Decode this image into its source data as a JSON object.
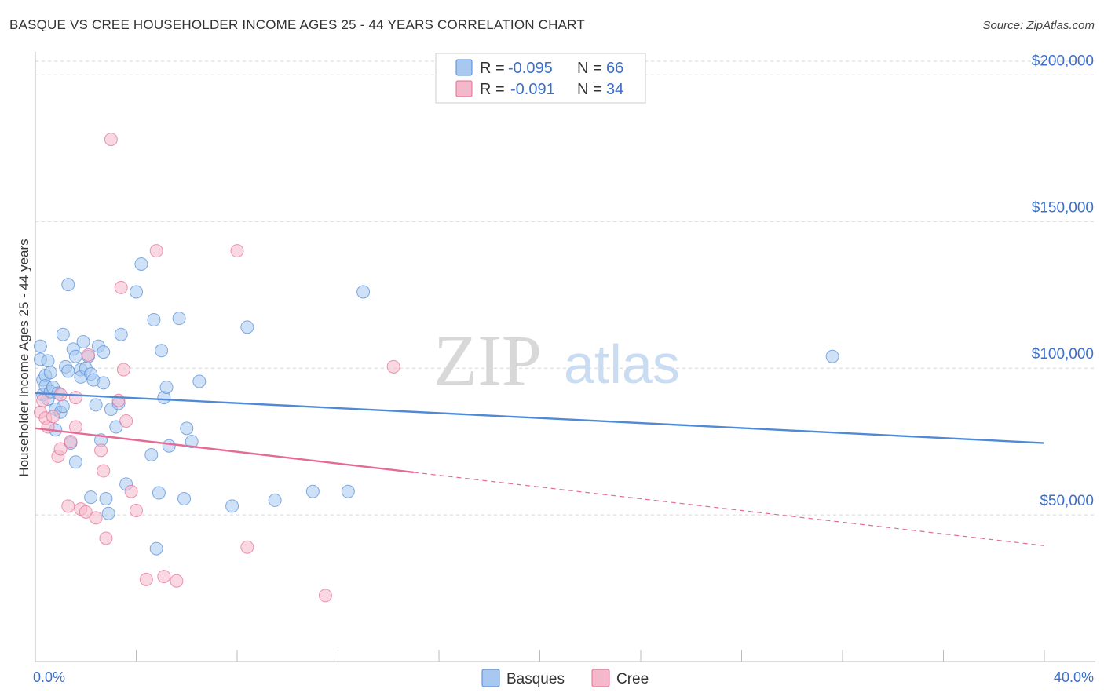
{
  "title": "BASQUE VS CREE HOUSEHOLDER INCOME AGES 25 - 44 YEARS CORRELATION CHART",
  "source": "Source: ZipAtlas.com",
  "watermark": {
    "zip": "ZIP",
    "atlas": "atlas"
  },
  "legend": {
    "rows": [
      {
        "r_label": "R =",
        "r_value": "-0.095",
        "n_label": "N =",
        "n_value": "66",
        "color": "#a8c8f0"
      },
      {
        "r_label": "R =",
        "r_value": "-0.091",
        "n_label": "N =",
        "n_value": "34",
        "color": "#f5b8cb"
      }
    ]
  },
  "bottom_legend": [
    {
      "label": "Basques",
      "color": "#a8c8f0"
    },
    {
      "label": "Cree",
      "color": "#f5b8cb"
    }
  ],
  "chart_data": {
    "type": "scatter",
    "ylabel": "Householder Income Ages 25 - 44 years",
    "xlim": [
      0,
      40
    ],
    "ylim": [
      0,
      210000
    ],
    "x_tick_labels": [
      "0.0%",
      "40.0%"
    ],
    "y_ticks": [
      {
        "value": 50000,
        "label": "$50,000"
      },
      {
        "value": 100000,
        "label": "$100,000"
      },
      {
        "value": 150000,
        "label": "$150,000"
      },
      {
        "value": 200000,
        "label": "$200,000"
      }
    ],
    "series": [
      {
        "name": "Basques",
        "color": "#4f8ad6",
        "fill": "#a8c8f0",
        "trend": {
          "x0": 0,
          "y0": 91500,
          "x1": 40,
          "y1": 74500,
          "solid_to": 40
        },
        "points": [
          [
            0.2,
            107500
          ],
          [
            0.2,
            103000
          ],
          [
            0.3,
            96000
          ],
          [
            0.3,
            91000
          ],
          [
            0.4,
            97500
          ],
          [
            0.4,
            94000
          ],
          [
            0.5,
            102500
          ],
          [
            0.5,
            89500
          ],
          [
            0.6,
            92000
          ],
          [
            0.6,
            98500
          ],
          [
            0.7,
            93500
          ],
          [
            0.8,
            79000
          ],
          [
            0.8,
            86000
          ],
          [
            0.9,
            91500
          ],
          [
            1.0,
            85000
          ],
          [
            1.1,
            111500
          ],
          [
            1.1,
            87000
          ],
          [
            1.2,
            100500
          ],
          [
            1.3,
            128500
          ],
          [
            1.3,
            99000
          ],
          [
            1.4,
            74500
          ],
          [
            1.5,
            106500
          ],
          [
            1.6,
            68000
          ],
          [
            1.6,
            104000
          ],
          [
            1.8,
            99500
          ],
          [
            1.8,
            97000
          ],
          [
            1.9,
            109000
          ],
          [
            2.0,
            100000
          ],
          [
            2.1,
            104000
          ],
          [
            2.2,
            98000
          ],
          [
            2.2,
            56000
          ],
          [
            2.3,
            96000
          ],
          [
            2.4,
            87500
          ],
          [
            2.5,
            107500
          ],
          [
            2.6,
            75500
          ],
          [
            2.7,
            105500
          ],
          [
            2.7,
            95000
          ],
          [
            2.8,
            55500
          ],
          [
            2.9,
            50500
          ],
          [
            3.0,
            86000
          ],
          [
            3.2,
            80000
          ],
          [
            3.3,
            88000
          ],
          [
            3.4,
            111500
          ],
          [
            3.6,
            60500
          ],
          [
            4.0,
            126000
          ],
          [
            4.2,
            135500
          ],
          [
            4.6,
            70500
          ],
          [
            4.7,
            116500
          ],
          [
            4.8,
            38500
          ],
          [
            4.9,
            57500
          ],
          [
            5.0,
            106000
          ],
          [
            5.1,
            90000
          ],
          [
            5.2,
            93500
          ],
          [
            5.3,
            73500
          ],
          [
            5.7,
            117000
          ],
          [
            5.9,
            55500
          ],
          [
            6.0,
            79500
          ],
          [
            6.2,
            75000
          ],
          [
            6.5,
            95500
          ],
          [
            7.8,
            53000
          ],
          [
            8.4,
            114000
          ],
          [
            9.5,
            55000
          ],
          [
            11.0,
            58000
          ],
          [
            12.4,
            58000
          ],
          [
            13.0,
            126000
          ],
          [
            31.6,
            104000
          ]
        ]
      },
      {
        "name": "Cree",
        "color": "#e46b95",
        "fill": "#f5b8cb",
        "trend": {
          "x0": 0,
          "y0": 79500,
          "x1": 40,
          "y1": 39500,
          "solid_to": 15
        },
        "points": [
          [
            0.2,
            85000
          ],
          [
            0.3,
            89000
          ],
          [
            0.4,
            83000
          ],
          [
            0.5,
            80000
          ],
          [
            0.7,
            83500
          ],
          [
            0.9,
            70000
          ],
          [
            1.0,
            91000
          ],
          [
            1.0,
            72500
          ],
          [
            1.3,
            53000
          ],
          [
            1.4,
            75000
          ],
          [
            1.6,
            90000
          ],
          [
            1.6,
            80000
          ],
          [
            1.8,
            52000
          ],
          [
            2.0,
            51000
          ],
          [
            2.1,
            104500
          ],
          [
            2.4,
            49000
          ],
          [
            2.6,
            72000
          ],
          [
            2.7,
            65000
          ],
          [
            2.8,
            42000
          ],
          [
            3.0,
            178000
          ],
          [
            3.3,
            89000
          ],
          [
            3.4,
            127500
          ],
          [
            3.5,
            99500
          ],
          [
            3.6,
            82000
          ],
          [
            3.8,
            58000
          ],
          [
            4.0,
            51500
          ],
          [
            4.4,
            28000
          ],
          [
            4.8,
            140000
          ],
          [
            5.1,
            29000
          ],
          [
            5.6,
            27500
          ],
          [
            8.0,
            140000
          ],
          [
            8.4,
            39000
          ],
          [
            11.5,
            22500
          ],
          [
            14.2,
            100500
          ]
        ]
      }
    ]
  }
}
